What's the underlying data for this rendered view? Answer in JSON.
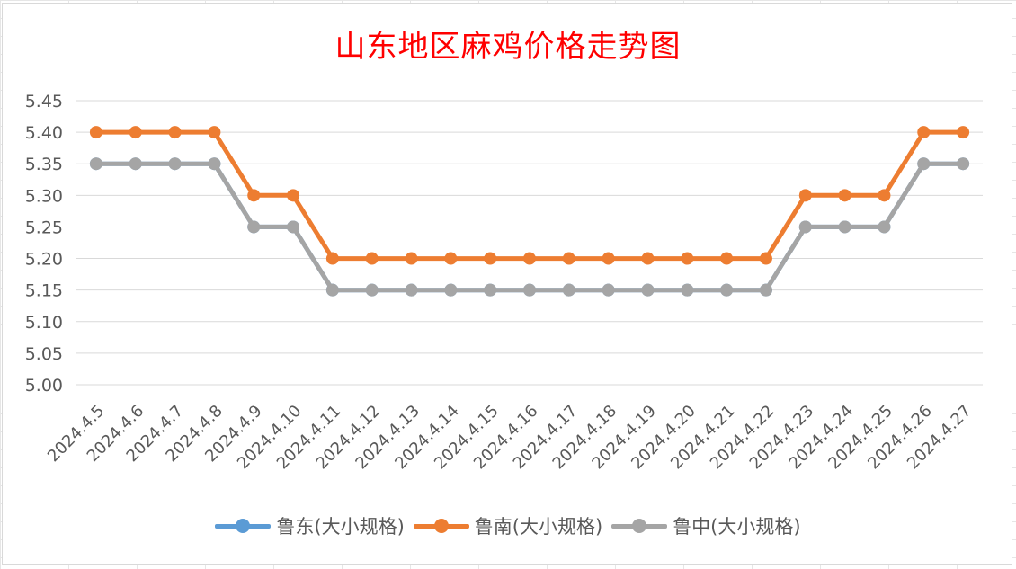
{
  "chart_data": {
    "type": "line",
    "title": "山东地区麻鸡价格走势图",
    "categories": [
      "2024.4.5",
      "2024.4.6",
      "2024.4.7",
      "2024.4.8",
      "2024.4.9",
      "2024.4.10",
      "2024.4.11",
      "2024.4.12",
      "2024.4.13",
      "2024.4.14",
      "2024.4.15",
      "2024.4.16",
      "2024.4.17",
      "2024.4.18",
      "2024.4.19",
      "2024.4.20",
      "2024.4.21",
      "2024.4.22",
      "2024.4.23",
      "2024.4.24",
      "2024.4.25",
      "2024.4.26",
      "2024.4.27"
    ],
    "series": [
      {
        "name": "鲁东(大小规格)",
        "color": "#5b9bd5",
        "values": [
          5.35,
          5.35,
          5.35,
          5.35,
          5.25,
          5.25,
          5.15,
          5.15,
          5.15,
          5.15,
          5.15,
          5.15,
          5.15,
          5.15,
          5.15,
          5.15,
          5.15,
          5.15,
          5.25,
          5.25,
          5.25,
          5.35,
          5.35
        ]
      },
      {
        "name": "鲁南(大小规格)",
        "color": "#ed7d31",
        "values": [
          5.4,
          5.4,
          5.4,
          5.4,
          5.3,
          5.3,
          5.2,
          5.2,
          5.2,
          5.2,
          5.2,
          5.2,
          5.2,
          5.2,
          5.2,
          5.2,
          5.2,
          5.2,
          5.3,
          5.3,
          5.3,
          5.4,
          5.4
        ]
      },
      {
        "name": "鲁中(大小规格)",
        "color": "#a5a5a5",
        "values": [
          5.35,
          5.35,
          5.35,
          5.35,
          5.25,
          5.25,
          5.15,
          5.15,
          5.15,
          5.15,
          5.15,
          5.15,
          5.15,
          5.15,
          5.15,
          5.15,
          5.15,
          5.15,
          5.25,
          5.25,
          5.25,
          5.35,
          5.35
        ]
      }
    ],
    "yticks": [
      "5.00",
      "5.05",
      "5.10",
      "5.15",
      "5.20",
      "5.25",
      "5.30",
      "5.35",
      "5.40",
      "5.45"
    ],
    "ylim": [
      5.0,
      5.45
    ],
    "xlabel": "",
    "ylabel": "",
    "grid": true,
    "legend_position": "bottom",
    "title_color": "#ff0000"
  }
}
